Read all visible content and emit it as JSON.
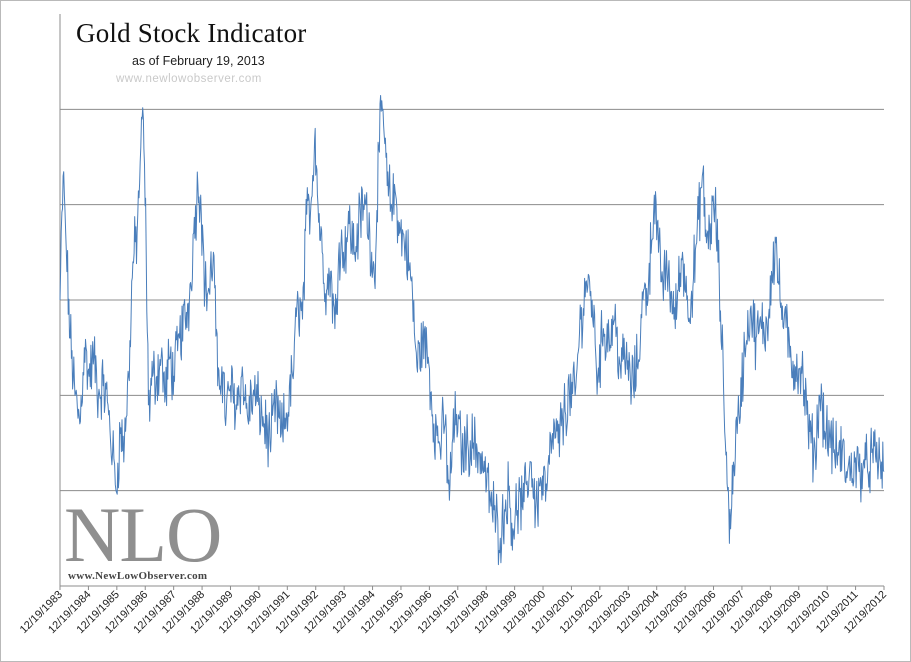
{
  "chart_data": {
    "type": "line",
    "title": "Gold Stock Indicator",
    "subtitle": "as of February 19, 2013",
    "watermark_text": "www.newlowobserver.com",
    "xlabel": "",
    "ylabel": "",
    "grid": true,
    "legend": "none",
    "x_tick_labels": [
      "12/19/1983",
      "12/19/1984",
      "12/19/1985",
      "12/19/1986",
      "12/19/1987",
      "12/19/1988",
      "12/19/1989",
      "12/19/1990",
      "12/19/1991",
      "12/19/1992",
      "12/19/1993",
      "12/19/1994",
      "12/19/1995",
      "12/19/1996",
      "12/19/1997",
      "12/19/1998",
      "12/19/1999",
      "12/19/2000",
      "12/19/2001",
      "12/19/2002",
      "12/19/2003",
      "12/19/2004",
      "12/19/2005",
      "12/19/2006",
      "12/19/2007",
      "12/19/2008",
      "12/19/2009",
      "12/19/2010",
      "12/19/2011",
      "12/19/2012"
    ],
    "x_range": [
      1983.97,
      2013.13
    ],
    "ylim": [
      0,
      6
    ],
    "series": [
      {
        "color": "#4a7ebb",
        "points": [
          [
            1983.97,
            3.0
          ],
          [
            1984.08,
            4.3
          ],
          [
            1984.17,
            3.7
          ],
          [
            1984.33,
            2.6
          ],
          [
            1984.5,
            2.0
          ],
          [
            1984.67,
            1.7
          ],
          [
            1984.83,
            2.5
          ],
          [
            1985.0,
            2.2
          ],
          [
            1985.17,
            2.4
          ],
          [
            1985.33,
            2.0
          ],
          [
            1985.5,
            2.1
          ],
          [
            1985.67,
            1.9
          ],
          [
            1985.83,
            1.4
          ],
          [
            1985.95,
            1.0
          ],
          [
            1986.1,
            1.6
          ],
          [
            1986.25,
            1.5
          ],
          [
            1986.4,
            2.2
          ],
          [
            1986.55,
            3.4
          ],
          [
            1986.7,
            3.7
          ],
          [
            1986.83,
            4.6
          ],
          [
            1986.92,
            4.9
          ],
          [
            1987.02,
            3.5
          ],
          [
            1987.1,
            1.9
          ],
          [
            1987.25,
            2.2
          ],
          [
            1987.4,
            2.2
          ],
          [
            1987.55,
            2.4
          ],
          [
            1987.7,
            2.0
          ],
          [
            1987.85,
            2.4
          ],
          [
            1988.0,
            2.2
          ],
          [
            1988.2,
            2.6
          ],
          [
            1988.4,
            2.8
          ],
          [
            1988.55,
            3.0
          ],
          [
            1988.7,
            3.7
          ],
          [
            1988.85,
            4.2
          ],
          [
            1988.95,
            4.1
          ],
          [
            1989.1,
            3.1
          ],
          [
            1989.25,
            3.1
          ],
          [
            1989.4,
            3.5
          ],
          [
            1989.55,
            2.1
          ],
          [
            1989.7,
            2.3
          ],
          [
            1989.85,
            1.8
          ],
          [
            1990.0,
            2.1
          ],
          [
            1990.2,
            1.9
          ],
          [
            1990.4,
            2.2
          ],
          [
            1990.6,
            1.8
          ],
          [
            1990.8,
            2.0
          ],
          [
            1991.0,
            1.9
          ],
          [
            1991.2,
            1.7
          ],
          [
            1991.4,
            1.5
          ],
          [
            1991.6,
            1.9
          ],
          [
            1991.8,
            1.6
          ],
          [
            1992.0,
            1.8
          ],
          [
            1992.2,
            2.2
          ],
          [
            1992.4,
            3.0
          ],
          [
            1992.55,
            2.8
          ],
          [
            1992.7,
            3.9
          ],
          [
            1992.85,
            4.0
          ],
          [
            1993.0,
            4.8
          ],
          [
            1993.1,
            4.0
          ],
          [
            1993.25,
            3.5
          ],
          [
            1993.4,
            3.1
          ],
          [
            1993.55,
            3.3
          ],
          [
            1993.7,
            2.7
          ],
          [
            1993.85,
            3.6
          ],
          [
            1994.0,
            3.5
          ],
          [
            1994.2,
            3.8
          ],
          [
            1994.4,
            3.5
          ],
          [
            1994.6,
            3.9
          ],
          [
            1994.8,
            4.0
          ],
          [
            1995.0,
            3.5
          ],
          [
            1995.1,
            3.2
          ],
          [
            1995.25,
            4.6
          ],
          [
            1995.4,
            5.0
          ],
          [
            1995.55,
            4.2
          ],
          [
            1995.7,
            4.0
          ],
          [
            1995.85,
            4.1
          ],
          [
            1996.0,
            3.7
          ],
          [
            1996.2,
            3.6
          ],
          [
            1996.4,
            3.2
          ],
          [
            1996.6,
            2.3
          ],
          [
            1996.8,
            2.6
          ],
          [
            1997.0,
            2.4
          ],
          [
            1997.2,
            1.7
          ],
          [
            1997.4,
            1.5
          ],
          [
            1997.6,
            1.7
          ],
          [
            1997.75,
            0.9
          ],
          [
            1997.85,
            1.5
          ],
          [
            1998.0,
            1.8
          ],
          [
            1998.2,
            1.4
          ],
          [
            1998.4,
            1.5
          ],
          [
            1998.6,
            1.5
          ],
          [
            1998.8,
            1.4
          ],
          [
            1999.0,
            1.2
          ],
          [
            1999.2,
            0.9
          ],
          [
            1999.4,
            0.7
          ],
          [
            1999.55,
            0.5
          ],
          [
            1999.7,
            0.8
          ],
          [
            1999.85,
            1.0
          ],
          [
            2000.0,
            0.6
          ],
          [
            2000.2,
            0.9
          ],
          [
            2000.35,
            0.8
          ],
          [
            2000.5,
            1.1
          ],
          [
            2000.65,
            1.3
          ],
          [
            2000.8,
            0.8
          ],
          [
            2001.0,
            1.1
          ],
          [
            2001.2,
            1.0
          ],
          [
            2001.4,
            1.6
          ],
          [
            2001.6,
            1.5
          ],
          [
            2001.8,
            1.8
          ],
          [
            2002.0,
            2.0
          ],
          [
            2002.2,
            2.0
          ],
          [
            2002.4,
            2.8
          ],
          [
            2002.6,
            3.2
          ],
          [
            2002.8,
            3.0
          ],
          [
            2003.0,
            2.2
          ],
          [
            2003.2,
            2.7
          ],
          [
            2003.4,
            2.6
          ],
          [
            2003.6,
            2.8
          ],
          [
            2003.8,
            2.3
          ],
          [
            2004.0,
            2.4
          ],
          [
            2004.2,
            2.1
          ],
          [
            2004.4,
            2.3
          ],
          [
            2004.6,
            3.0
          ],
          [
            2004.8,
            3.2
          ],
          [
            2005.0,
            4.1
          ],
          [
            2005.15,
            3.5
          ],
          [
            2005.3,
            3.2
          ],
          [
            2005.5,
            3.3
          ],
          [
            2005.7,
            2.8
          ],
          [
            2005.85,
            3.1
          ],
          [
            2006.0,
            3.5
          ],
          [
            2006.15,
            3.0
          ],
          [
            2006.3,
            3.0
          ],
          [
            2006.5,
            3.6
          ],
          [
            2006.7,
            4.3
          ],
          [
            2006.85,
            3.6
          ],
          [
            2007.0,
            3.8
          ],
          [
            2007.15,
            4.0
          ],
          [
            2007.3,
            3.2
          ],
          [
            2007.45,
            2.1
          ],
          [
            2007.6,
            1.0
          ],
          [
            2007.7,
            0.6
          ],
          [
            2007.8,
            1.3
          ],
          [
            2008.0,
            1.8
          ],
          [
            2008.2,
            2.5
          ],
          [
            2008.4,
            2.9
          ],
          [
            2008.6,
            2.6
          ],
          [
            2008.8,
            2.7
          ],
          [
            2009.0,
            2.7
          ],
          [
            2009.15,
            3.3
          ],
          [
            2009.3,
            3.6
          ],
          [
            2009.45,
            3.0
          ],
          [
            2009.6,
            2.8
          ],
          [
            2009.8,
            2.4
          ],
          [
            2010.0,
            2.3
          ],
          [
            2010.2,
            2.3
          ],
          [
            2010.4,
            1.8
          ],
          [
            2010.55,
            1.5
          ],
          [
            2010.7,
            1.4
          ],
          [
            2010.85,
            2.0
          ],
          [
            2010.95,
            1.9
          ],
          [
            2011.05,
            1.6
          ],
          [
            2011.2,
            1.6
          ],
          [
            2011.35,
            1.4
          ],
          [
            2011.5,
            1.4
          ],
          [
            2011.65,
            1.4
          ],
          [
            2011.8,
            1.2
          ],
          [
            2011.95,
            1.2
          ],
          [
            2012.1,
            1.3
          ],
          [
            2012.25,
            1.2
          ],
          [
            2012.4,
            1.3
          ],
          [
            2012.55,
            1.2
          ],
          [
            2012.7,
            1.4
          ],
          [
            2012.85,
            1.3
          ],
          [
            2013.0,
            1.3
          ],
          [
            2013.13,
            1.2
          ]
        ]
      }
    ],
    "logo": {
      "mark": "NLO",
      "url": "www.NewLowObserver.com"
    }
  }
}
